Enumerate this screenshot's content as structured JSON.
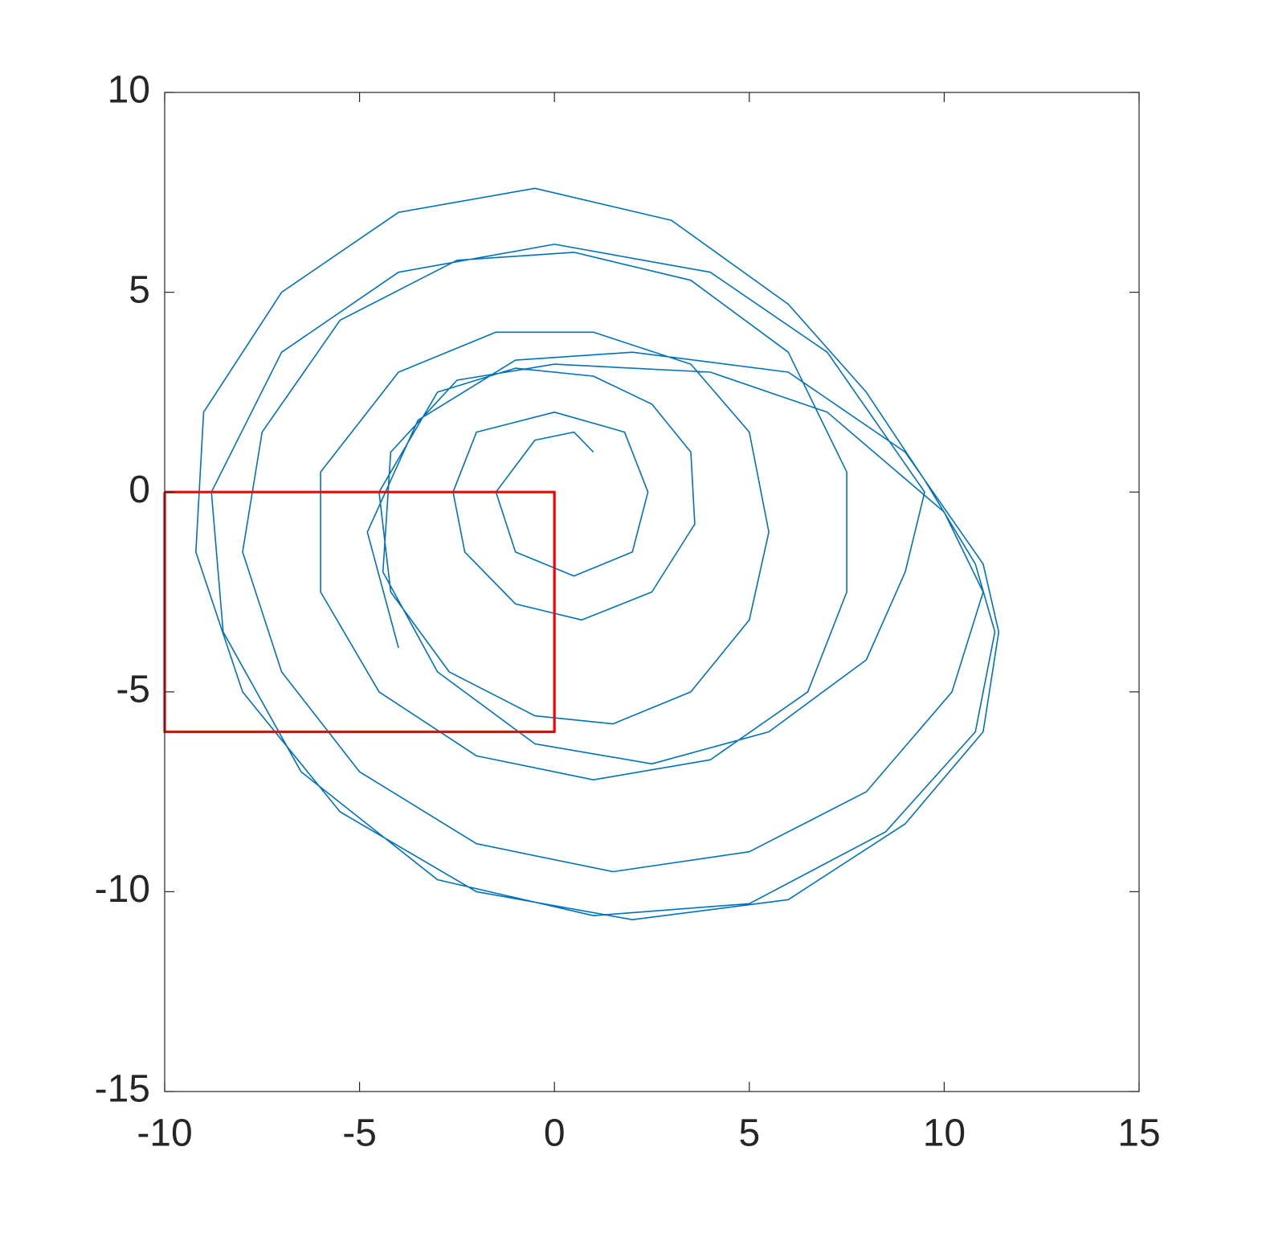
{
  "chart_data": {
    "type": "line",
    "xlim": [
      -10,
      15
    ],
    "ylim": [
      -15,
      10
    ],
    "xticks": [
      -10,
      -5,
      0,
      5,
      10,
      15
    ],
    "yticks": [
      -15,
      -10,
      -5,
      0,
      5,
      10
    ],
    "box": true,
    "series": [
      {
        "color": "#0072bd",
        "x": [
          1,
          0.5,
          -0.5,
          -1.5,
          -1,
          0.5,
          2,
          2.4,
          1.8,
          0,
          -2,
          -2.6,
          -2.3,
          -1,
          0.7,
          2.5,
          3.6,
          3.5,
          2.5,
          1,
          -1,
          -3,
          -4.5,
          -4.2,
          -2.7,
          -0.5,
          1.5,
          3.5,
          5,
          5.5,
          5,
          3.5,
          1,
          -1.5,
          -4,
          -6,
          -6,
          -4.5,
          -2,
          1,
          4,
          6.5,
          7.5,
          7.5,
          6,
          3.5,
          0.5,
          -2.5,
          -5.5,
          -7.5,
          -8,
          -7,
          -5,
          -2,
          1.5,
          5,
          8,
          10.2,
          11,
          10,
          7,
          4,
          0,
          -2.5,
          -4.2,
          -4.4,
          -3,
          -0.5,
          2.5,
          5.5,
          8,
          9,
          9.5,
          7,
          4,
          0,
          -4,
          -7,
          -8.8,
          -8.5,
          -6.5,
          -3,
          1,
          5,
          8.5,
          10.8,
          11.3,
          10.8,
          9.5,
          8,
          6,
          3,
          -0.5,
          -4,
          -7,
          -9,
          -9.2,
          -8,
          -5.5,
          -2,
          2,
          6,
          9,
          11,
          11.4,
          11,
          9,
          6,
          2,
          -1,
          -3.5,
          -4.8,
          -4
        ],
        "y": [
          1,
          1.5,
          1.3,
          0,
          -1.5,
          -2.1,
          -1.5,
          0,
          1.5,
          2,
          1.5,
          0,
          -1.5,
          -2.8,
          -3.2,
          -2.5,
          -0.8,
          1,
          2.2,
          2.9,
          3.1,
          2.5,
          0,
          -2.5,
          -4.5,
          -5.6,
          -5.8,
          -5,
          -3.2,
          -1,
          1.5,
          3.2,
          4,
          4,
          3,
          0.5,
          -2.5,
          -5,
          -6.6,
          -7.2,
          -6.7,
          -5,
          -2.5,
          0.5,
          3.5,
          5.3,
          6,
          5.8,
          4.3,
          1.5,
          -1.5,
          -4.5,
          -7,
          -8.8,
          -9.5,
          -9,
          -7.5,
          -5,
          -2.5,
          -0.5,
          2,
          3,
          3.2,
          2.8,
          1,
          -2,
          -4.5,
          -6.3,
          -6.8,
          -6,
          -4.2,
          -2,
          0,
          3.5,
          5.5,
          6.2,
          5.5,
          3.5,
          0,
          -3.5,
          -7,
          -9.7,
          -10.6,
          -10.3,
          -8.5,
          -6,
          -3.5,
          -1.8,
          0.3,
          2.5,
          4.7,
          6.8,
          7.6,
          7,
          5,
          2,
          -1.5,
          -5,
          -8,
          -10,
          -10.7,
          -10.2,
          -8.3,
          -6,
          -3.5,
          -1.8,
          1,
          3,
          3.5,
          3.3,
          1.8,
          -1,
          -3.9
        ]
      },
      {
        "color": "#ff0000",
        "x": [
          -10,
          0,
          0,
          -10,
          -10
        ],
        "y": [
          0,
          0,
          -6,
          -6,
          0
        ]
      }
    ]
  }
}
